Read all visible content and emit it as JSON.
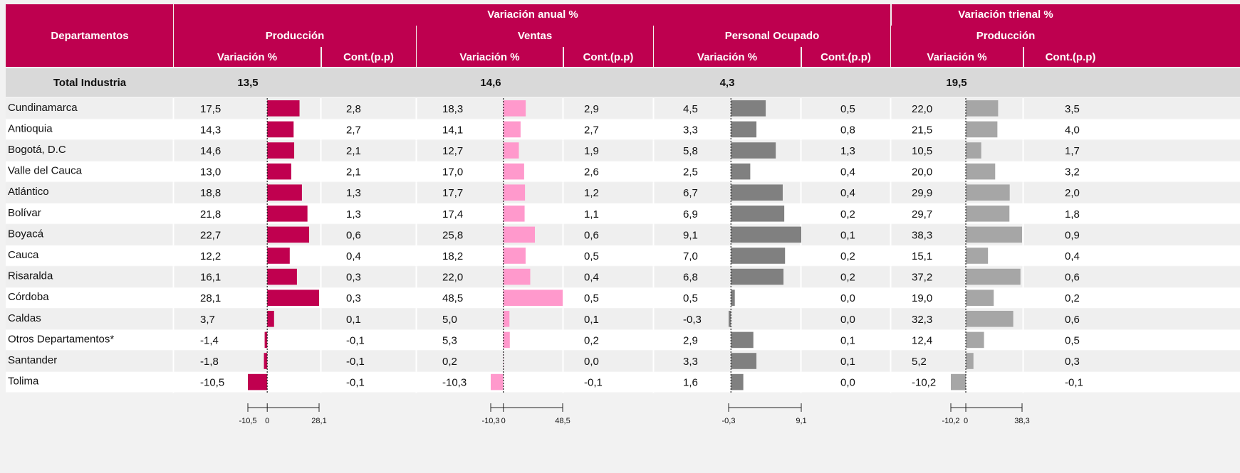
{
  "header": {
    "row_label": "Departamentos",
    "groups": [
      {
        "label": "Variación anual %",
        "subgroups": [
          "Producción",
          "Ventas",
          "Personal Ocupado"
        ]
      },
      {
        "label": "Variación trienal %",
        "subgroups": [
          "Producción"
        ]
      }
    ],
    "columns": [
      "Variación %",
      "Cont.(p.p)"
    ]
  },
  "total": {
    "label": "Total Industria",
    "values": [
      "13,5",
      "14,6",
      "4,3",
      "19,5"
    ]
  },
  "bar_colors": [
    "#c0004f",
    "#ff99cc",
    "#808080",
    "#a6a6a6"
  ],
  "scales": [
    {
      "ticks": [
        {
          "value": -10.5,
          "label": "-10,5"
        },
        0,
        {
          "value": 28.1,
          "label": "28,1"
        }
      ]
    },
    {
      "ticks": [
        {
          "value": -10.3,
          "label": "-10,3"
        },
        0,
        {
          "value": 48.5,
          "label": "48,5"
        }
      ]
    },
    {
      "ticks": [
        {
          "value": -0.3,
          "label": "-0,3"
        },
        {
          "value": 9.1,
          "label": "9,1"
        }
      ]
    },
    {
      "ticks": [
        {
          "value": -10.2,
          "label": "-10,2"
        },
        0,
        {
          "value": 38.3,
          "label": "38,3"
        }
      ]
    }
  ],
  "rows": [
    {
      "name": "Cundinamarca",
      "var": [
        {
          "value": 17.5,
          "label": "17,5"
        },
        {
          "value": 18.3,
          "label": "18,3"
        },
        {
          "value": 4.5,
          "label": "4,5"
        },
        {
          "value": 22.0,
          "label": "22,0"
        }
      ],
      "cont": [
        "2,8",
        "2,9",
        "0,5",
        "3,5"
      ]
    },
    {
      "name": "Antioquia",
      "var": [
        {
          "value": 14.3,
          "label": "14,3"
        },
        {
          "value": 14.1,
          "label": "14,1"
        },
        {
          "value": 3.3,
          "label": "3,3"
        },
        {
          "value": 21.5,
          "label": "21,5"
        }
      ],
      "cont": [
        "2,7",
        "2,7",
        "0,8",
        "4,0"
      ]
    },
    {
      "name": "Bogotá, D.C",
      "var": [
        {
          "value": 14.6,
          "label": "14,6"
        },
        {
          "value": 12.7,
          "label": "12,7"
        },
        {
          "value": 5.8,
          "label": "5,8"
        },
        {
          "value": 10.5,
          "label": "10,5"
        }
      ],
      "cont": [
        "2,1",
        "1,9",
        "1,3",
        "1,7"
      ]
    },
    {
      "name": "Valle del Cauca",
      "var": [
        {
          "value": 13.0,
          "label": "13,0"
        },
        {
          "value": 17.0,
          "label": "17,0"
        },
        {
          "value": 2.5,
          "label": "2,5"
        },
        {
          "value": 20.0,
          "label": "20,0"
        }
      ],
      "cont": [
        "2,1",
        "2,6",
        "0,4",
        "3,2"
      ]
    },
    {
      "name": "Atlántico",
      "var": [
        {
          "value": 18.8,
          "label": "18,8"
        },
        {
          "value": 17.7,
          "label": "17,7"
        },
        {
          "value": 6.7,
          "label": "6,7"
        },
        {
          "value": 29.9,
          "label": "29,9"
        }
      ],
      "cont": [
        "1,3",
        "1,2",
        "0,4",
        "2,0"
      ]
    },
    {
      "name": "Bolívar",
      "var": [
        {
          "value": 21.8,
          "label": "21,8"
        },
        {
          "value": 17.4,
          "label": "17,4"
        },
        {
          "value": 6.9,
          "label": "6,9"
        },
        {
          "value": 29.7,
          "label": "29,7"
        }
      ],
      "cont": [
        "1,3",
        "1,1",
        "0,2",
        "1,8"
      ]
    },
    {
      "name": "Boyacá",
      "var": [
        {
          "value": 22.7,
          "label": "22,7"
        },
        {
          "value": 25.8,
          "label": "25,8"
        },
        {
          "value": 9.1,
          "label": "9,1"
        },
        {
          "value": 38.3,
          "label": "38,3"
        }
      ],
      "cont": [
        "0,6",
        "0,6",
        "0,1",
        "0,9"
      ]
    },
    {
      "name": "Cauca",
      "var": [
        {
          "value": 12.2,
          "label": "12,2"
        },
        {
          "value": 18.2,
          "label": "18,2"
        },
        {
          "value": 7.0,
          "label": "7,0"
        },
        {
          "value": 15.1,
          "label": "15,1"
        }
      ],
      "cont": [
        "0,4",
        "0,5",
        "0,2",
        "0,4"
      ]
    },
    {
      "name": "Risaralda",
      "var": [
        {
          "value": 16.1,
          "label": "16,1"
        },
        {
          "value": 22.0,
          "label": "22,0"
        },
        {
          "value": 6.8,
          "label": "6,8"
        },
        {
          "value": 37.2,
          "label": "37,2"
        }
      ],
      "cont": [
        "0,3",
        "0,4",
        "0,2",
        "0,6"
      ]
    },
    {
      "name": "Córdoba",
      "var": [
        {
          "value": 28.1,
          "label": "28,1"
        },
        {
          "value": 48.5,
          "label": "48,5"
        },
        {
          "value": 0.5,
          "label": "0,5"
        },
        {
          "value": 19.0,
          "label": "19,0"
        }
      ],
      "cont": [
        "0,3",
        "0,5",
        "0,0",
        "0,2"
      ]
    },
    {
      "name": "Caldas",
      "var": [
        {
          "value": 3.7,
          "label": "3,7"
        },
        {
          "value": 5.0,
          "label": "5,0"
        },
        {
          "value": -0.3,
          "label": "-0,3"
        },
        {
          "value": 32.3,
          "label": "32,3"
        }
      ],
      "cont": [
        "0,1",
        "0,1",
        "0,0",
        "0,6"
      ]
    },
    {
      "name": "Otros Departamentos*",
      "var": [
        {
          "value": -1.4,
          "label": "-1,4"
        },
        {
          "value": 5.3,
          "label": "5,3"
        },
        {
          "value": 2.9,
          "label": "2,9"
        },
        {
          "value": 12.4,
          "label": "12,4"
        }
      ],
      "cont": [
        "-0,1",
        "0,2",
        "0,1",
        "0,5"
      ]
    },
    {
      "name": "Santander",
      "var": [
        {
          "value": -1.8,
          "label": "-1,8"
        },
        {
          "value": 0.2,
          "label": "0,2"
        },
        {
          "value": 3.3,
          "label": "3,3"
        },
        {
          "value": 5.2,
          "label": "5,2"
        }
      ],
      "cont": [
        "-0,1",
        "0,0",
        "0,1",
        "0,3"
      ]
    },
    {
      "name": "Tolima",
      "var": [
        {
          "value": -10.5,
          "label": "-10,5"
        },
        {
          "value": -10.3,
          "label": "-10,3"
        },
        {
          "value": 1.6,
          "label": "1,6"
        },
        {
          "value": -10.2,
          "label": "-10,2"
        }
      ],
      "cont": [
        "-0,1",
        "-0,1",
        "0,0",
        "-0,1"
      ]
    }
  ]
}
